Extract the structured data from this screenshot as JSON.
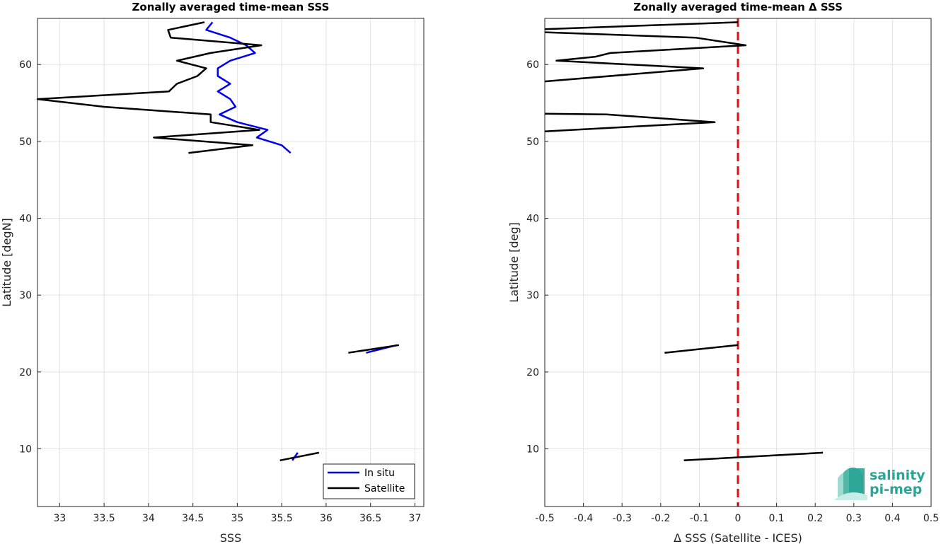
{
  "chart_data": [
    {
      "type": "line",
      "title": "Zonally averaged time-mean SSS",
      "xlabel": "SSS",
      "ylabel": "Latitude [degN]",
      "xlim": [
        32.75,
        37.1
      ],
      "ylim": [
        2.5,
        66
      ],
      "xticks": [
        33,
        33.5,
        34,
        34.5,
        35,
        35.5,
        36,
        36.5,
        37
      ],
      "xtick_labels": [
        "33",
        "33.5",
        "34",
        "34.5",
        "35",
        "35.5",
        "36",
        "36.5",
        "37"
      ],
      "yticks": [
        10,
        20,
        30,
        40,
        50,
        60
      ],
      "ytick_labels": [
        "10",
        "20",
        "30",
        "40",
        "50",
        "60"
      ],
      "grid": true,
      "legend": {
        "position": "bottom-right",
        "entries": [
          "In situ",
          "Satellite"
        ]
      },
      "series": [
        {
          "name": "In situ",
          "color": "#0000ee",
          "segments": [
            [
              [
                35.6,
                48.5
              ],
              [
                35.5,
                49.5
              ],
              [
                35.22,
                50.5
              ],
              [
                35.34,
                51.5
              ],
              [
                35.0,
                52.5
              ],
              [
                34.8,
                53.5
              ],
              [
                34.98,
                54.5
              ],
              [
                34.92,
                55.5
              ],
              [
                34.78,
                56.5
              ],
              [
                34.92,
                57.5
              ],
              [
                34.78,
                58.5
              ],
              [
                34.78,
                59.5
              ],
              [
                34.92,
                60.5
              ],
              [
                35.2,
                61.5
              ],
              [
                35.1,
                62.5
              ],
              [
                34.92,
                63.5
              ],
              [
                34.65,
                64.5
              ],
              [
                34.72,
                65.5
              ]
            ],
            [
              [
                36.45,
                22.5
              ],
              [
                36.8,
                23.5
              ]
            ],
            [
              [
                35.62,
                8.5
              ],
              [
                35.68,
                9.5
              ]
            ]
          ]
        },
        {
          "name": "Satellite",
          "color": "#000000",
          "segments": [
            [
              [
                34.45,
                48.5
              ],
              [
                35.17,
                49.5
              ],
              [
                34.06,
                50.5
              ],
              [
                35.25,
                51.5
              ],
              [
                34.7,
                52.5
              ],
              [
                34.7,
                53.5
              ],
              [
                33.5,
                54.5
              ],
              [
                32.75,
                55.5
              ],
              [
                34.23,
                56.5
              ],
              [
                34.32,
                57.5
              ],
              [
                34.55,
                58.5
              ],
              [
                34.65,
                59.5
              ],
              [
                34.32,
                60.5
              ],
              [
                34.7,
                61.5
              ],
              [
                35.27,
                62.5
              ],
              [
                34.25,
                63.5
              ],
              [
                34.22,
                64.5
              ],
              [
                34.63,
                65.5
              ]
            ],
            [
              [
                36.25,
                22.5
              ],
              [
                36.82,
                23.5
              ]
            ],
            [
              [
                35.48,
                8.5
              ],
              [
                35.92,
                9.5
              ]
            ]
          ]
        }
      ]
    },
    {
      "type": "line",
      "title": "Zonally averaged time-mean Δ SSS",
      "xlabel": "Δ SSS (Satellite - ICES)",
      "ylabel": "Latitude [deg]",
      "xlim": [
        -0.5,
        0.5
      ],
      "ylim": [
        2.5,
        66
      ],
      "xticks": [
        -0.5,
        -0.4,
        -0.3,
        -0.2,
        -0.1,
        0,
        0.1,
        0.2,
        0.3,
        0.4,
        0.5
      ],
      "xtick_labels": [
        "-0.5",
        "-0.4",
        "-0.3",
        "-0.2",
        "-0.1",
        "0",
        "0.1",
        "0.2",
        "0.3",
        "0.4",
        "0.5"
      ],
      "yticks": [
        10,
        20,
        30,
        40,
        50,
        60
      ],
      "ytick_labels": [
        "10",
        "20",
        "30",
        "40",
        "50",
        "60"
      ],
      "grid": true,
      "reference_line": {
        "x": 0,
        "color": "#dd1111",
        "style": "dashed"
      },
      "series": [
        {
          "color": "#000000",
          "segments": [
            [
              [
                -0.5,
                51.3
              ],
              [
                -0.06,
                52.5
              ],
              [
                -0.34,
                53.5
              ],
              [
                -0.5,
                53.6
              ]
            ],
            [
              [
                -0.5,
                57.8
              ],
              [
                -0.09,
                59.5
              ],
              [
                -0.47,
                60.5
              ],
              [
                -0.37,
                61.0
              ],
              [
                -0.33,
                61.5
              ],
              [
                0.02,
                62.5
              ],
              [
                -0.11,
                63.5
              ],
              [
                -0.5,
                64.2
              ]
            ],
            [
              [
                -0.5,
                64.6
              ],
              [
                0.0,
                65.5
              ]
            ],
            [
              [
                -0.19,
                22.5
              ],
              [
                0.0,
                23.5
              ]
            ],
            [
              [
                -0.14,
                8.5
              ],
              [
                0.22,
                9.5
              ]
            ]
          ]
        }
      ]
    }
  ],
  "logo": {
    "line1": "salinity",
    "line2": "pi-mep"
  }
}
